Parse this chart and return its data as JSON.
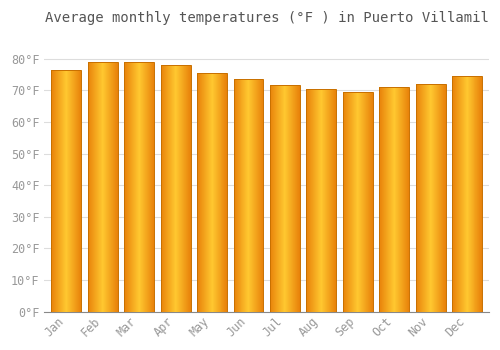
{
  "title": "Average monthly temperatures (°F ) in Puerto Villamil",
  "months": [
    "Jan",
    "Feb",
    "Mar",
    "Apr",
    "May",
    "Jun",
    "Jul",
    "Aug",
    "Sep",
    "Oct",
    "Nov",
    "Dec"
  ],
  "values": [
    76.5,
    79.0,
    79.0,
    78.0,
    75.5,
    73.5,
    71.5,
    70.5,
    69.5,
    71.0,
    72.0,
    74.5
  ],
  "ylim": [
    0,
    88
  ],
  "yticks": [
    0,
    10,
    20,
    30,
    40,
    50,
    60,
    70,
    80
  ],
  "ytick_labels": [
    "0°F",
    "10°F",
    "20°F",
    "30°F",
    "40°F",
    "50°F",
    "60°F",
    "70°F",
    "80°F"
  ],
  "bar_color_left": "#E8820A",
  "bar_color_mid": "#FFC830",
  "bar_color_right": "#E8820A",
  "bar_edge_color": "#C87000",
  "background_color": "#FFFFFF",
  "plot_bg_color": "#FFFFFF",
  "grid_color": "#DDDDDD",
  "title_fontsize": 10,
  "tick_fontsize": 8.5,
  "font_color": "#999999",
  "bar_width": 0.82
}
